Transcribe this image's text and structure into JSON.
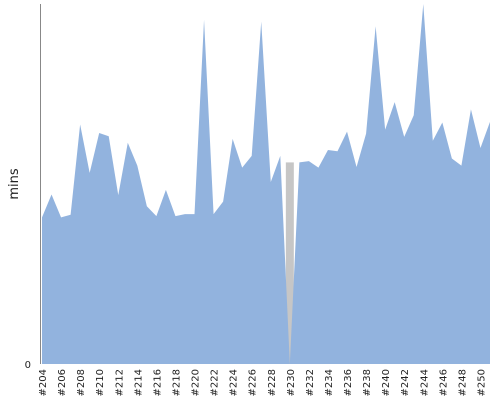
{
  "chart_data": {
    "type": "area",
    "ylabel": "mins",
    "xlabel": "",
    "title": "",
    "ylim": [
      0,
      55
    ],
    "y_ticks": [
      {
        "value": 0,
        "label": "0"
      }
    ],
    "grid": false,
    "legend": "none",
    "colors": {
      "area": "#92b3de",
      "failed": "#c6c6c6",
      "axis": "#888888"
    },
    "x": [
      "#204",
      "#205",
      "#206",
      "#207",
      "#208",
      "#209",
      "#210",
      "#211",
      "#212",
      "#213",
      "#214",
      "#215",
      "#216",
      "#217",
      "#218",
      "#219",
      "#220",
      "#221",
      "#222",
      "#223",
      "#224",
      "#225",
      "#226",
      "#227",
      "#228",
      "#229",
      "#230",
      "#231",
      "#232",
      "#233",
      "#234",
      "#235",
      "#236",
      "#237",
      "#238",
      "#239",
      "#240",
      "#241",
      "#242",
      "#243",
      "#244",
      "#245",
      "#246",
      "#247",
      "#248",
      "#249",
      "#250",
      "#251"
    ],
    "x_tick_labels": [
      "#204",
      "#206",
      "#208",
      "#210",
      "#212",
      "#214",
      "#216",
      "#218",
      "#220",
      "#222",
      "#224",
      "#226",
      "#228",
      "#230",
      "#232",
      "#234",
      "#236",
      "#238",
      "#240",
      "#242",
      "#244",
      "#246",
      "#248",
      "#250"
    ],
    "values": [
      22.4,
      25.9,
      22.4,
      22.8,
      36.6,
      29.2,
      35.3,
      34.8,
      25.8,
      33.8,
      30.3,
      24.1,
      22.6,
      26.6,
      22.6,
      22.9,
      22.9,
      52.6,
      22.9,
      24.8,
      34.4,
      30.0,
      31.8,
      52.3,
      27.8,
      31.8,
      0.0,
      30.8,
      31.0,
      30.0,
      32.7,
      32.5,
      35.5,
      30.1,
      35.2,
      51.6,
      35.8,
      40.0,
      34.7,
      38.0,
      55.0,
      34.1,
      36.9,
      31.4,
      30.3,
      38.9,
      33.0,
      37.0
    ]
  }
}
